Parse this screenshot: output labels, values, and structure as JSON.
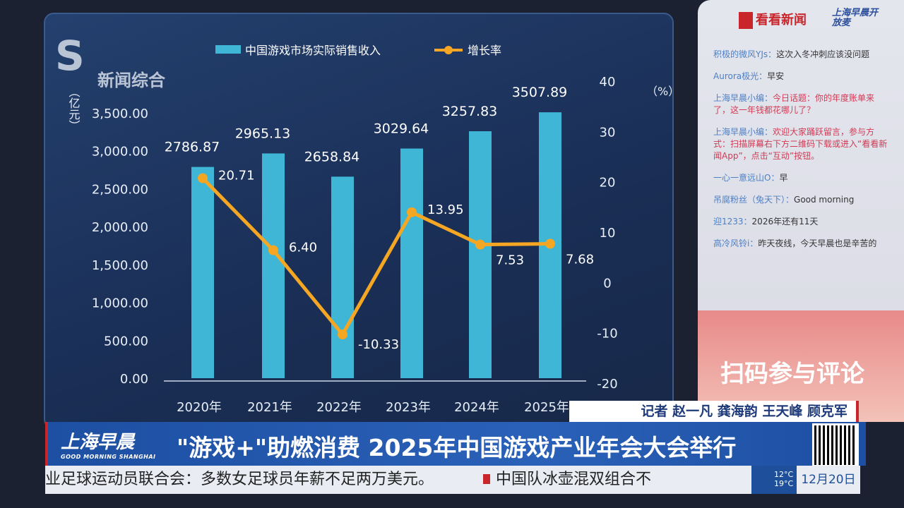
{
  "channel": {
    "logo_text": "新闻综合"
  },
  "chart_data": {
    "type": "bar",
    "categories": [
      "2020年",
      "2021年",
      "2022年",
      "2023年",
      "2024年",
      "2025年"
    ],
    "series": [
      {
        "name": "中国游戏市场实际销售收入",
        "type": "bar",
        "axis": "left",
        "values": [
          2786.87,
          2965.13,
          2658.84,
          3029.64,
          3257.83,
          3507.89
        ],
        "labels": [
          "2786.87",
          "2965.13",
          "2658.84",
          "3029.64",
          "3257.83",
          "3507.89"
        ],
        "color": "#3fb6d6"
      },
      {
        "name": "增长率",
        "type": "line",
        "axis": "right",
        "values": [
          20.71,
          6.4,
          -10.33,
          13.95,
          7.53,
          7.68
        ],
        "labels": [
          "20.71",
          "6.40",
          "-10.33",
          "13.95",
          "7.53",
          "7.68"
        ],
        "color": "#f5a623"
      }
    ],
    "ylabel_left": "（亿元）",
    "ylabel_right": "（%）",
    "ylim_left": [
      0,
      3500
    ],
    "ylim_right": [
      -20,
      40
    ],
    "yticks_left": [
      "0.00",
      "500.00",
      "1,000.00",
      "1,500.00",
      "2,000.00",
      "2,500.00",
      "3,000.00",
      "3,500.00"
    ],
    "yticks_right": [
      "-20",
      "-10",
      "0",
      "10",
      "20",
      "30",
      "40"
    ],
    "legend": "top"
  },
  "comments": {
    "app": "看看新闻",
    "show": "上海早晨开放麦",
    "items": [
      {
        "user": "积极的微风YJs：",
        "text": "这次入冬冲刺应该没问题",
        "red": false
      },
      {
        "user": "Aurora极光：",
        "text": "早安",
        "red": false
      },
      {
        "user": "上海早晨小编：",
        "text": "今日话题：你的年度账单来了，这一年钱都花哪儿了？",
        "red": true
      },
      {
        "user": "上海早晨小编：",
        "text": "欢迎大家踊跃留言，参与方式：扫描屏幕右下方二维码下载或进入“看看新闻App”，点击“互动”按钮。",
        "red": true
      },
      {
        "user": "一心一意远山O：",
        "text": "早",
        "red": false
      },
      {
        "user": "吊腐粉丝（兔天下）：",
        "text": "Good morning",
        "red": false
      },
      {
        "user": "迎1233：",
        "text": "2026年还有11天",
        "red": false
      },
      {
        "user": "高冷风铃i：",
        "text": "昨天夜线，今天早晨也是辛苦的",
        "red": false
      }
    ],
    "scan_text": "扫码参与评论"
  },
  "reporter": "记者 赵一凡 龚海韵 王天峰 顾克军",
  "show_logo": {
    "cn": "上海早晨",
    "en": "GOOD MORNING SHANGHAI"
  },
  "headline": "\"游戏+\"助燃消费  2025年中国游戏产业年会大会举行",
  "ticker": {
    "text1": "业足球运动员联合会：多数女足球员年薪不足两万美元。",
    "text2": "中国队冰壶混双组合不"
  },
  "weather": {
    "high": "12°C",
    "low": "19°C"
  },
  "date": "12月20日"
}
